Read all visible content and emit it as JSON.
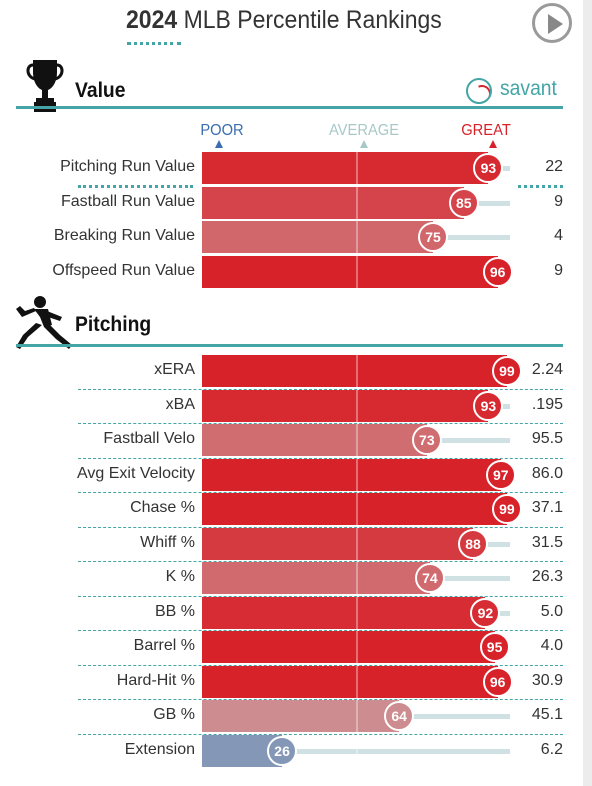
{
  "title": {
    "year": "2024",
    "text": "MLB Percentile Rankings"
  },
  "brand": "savant",
  "scale_labels": {
    "poor": "POOR",
    "average": "AVERAGE",
    "great": "GREAT"
  },
  "colors": {
    "poor": "#3a6eaf",
    "average": "#a8c8c8",
    "great": "#d8222a",
    "accent": "#43a5a5"
  },
  "chart_data": [
    {
      "type": "bar",
      "title": "Value",
      "xlim": [
        0,
        100
      ],
      "categories": [
        "Pitching Run Value",
        "Fastball Run Value",
        "Breaking Run Value",
        "Offspeed Run Value"
      ],
      "percentiles": [
        93,
        85,
        75,
        96
      ],
      "values": [
        "22",
        "9",
        "4",
        "9"
      ]
    },
    {
      "type": "bar",
      "title": "Pitching",
      "xlim": [
        0,
        100
      ],
      "categories": [
        "xERA",
        "xBA",
        "Fastball Velo",
        "Avg Exit Velocity",
        "Chase %",
        "Whiff %",
        "K %",
        "BB %",
        "Barrel %",
        "Hard-Hit %",
        "GB %",
        "Extension"
      ],
      "percentiles": [
        99,
        93,
        73,
        97,
        99,
        88,
        74,
        92,
        95,
        96,
        64,
        26
      ],
      "values": [
        "2.24",
        ".195",
        "95.5",
        "86.0",
        "37.1",
        "31.5",
        "26.3",
        "5.0",
        "4.0",
        "30.9",
        "45.1",
        "6.2"
      ]
    }
  ]
}
